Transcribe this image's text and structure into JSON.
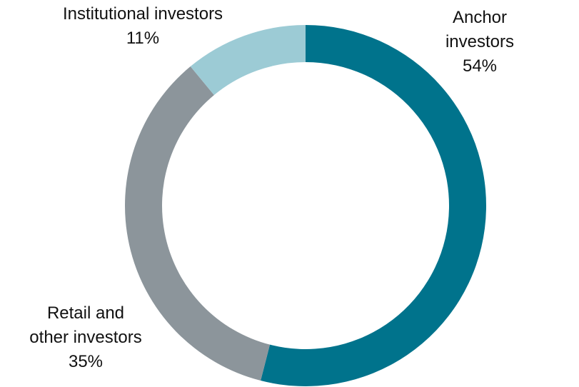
{
  "chart_data": {
    "type": "pie",
    "categories": [
      "Anchor investors",
      "Retail and\nother investors",
      "Institutional investors"
    ],
    "values": [
      54,
      35,
      11
    ],
    "value_labels": [
      "54%",
      "35%",
      "11%"
    ],
    "colors": [
      "#00738c",
      "#8c959b",
      "#9ccbd5"
    ],
    "donut": true
  }
}
